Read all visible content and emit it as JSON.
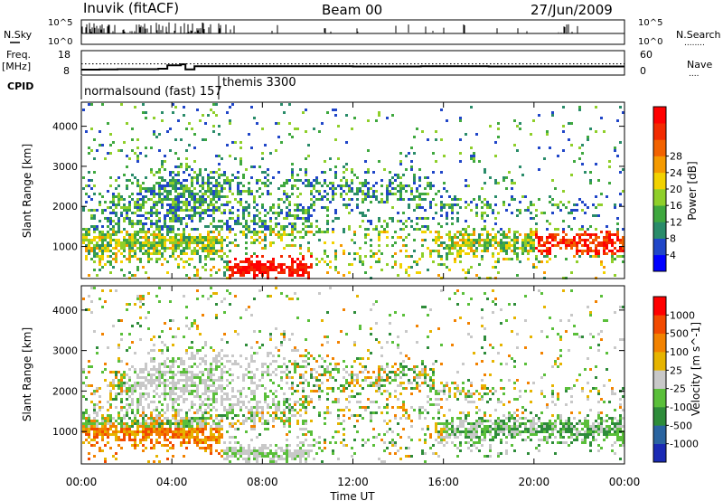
{
  "header": {
    "station": "Inuvik (fitACF)",
    "beam": "Beam 00",
    "date": "27/Jun/2009"
  },
  "noise_panel": {
    "left_label": "N.Sky",
    "left_ticks": [
      "10^5",
      "10^0"
    ],
    "right_ticks": [
      "10^5",
      "10^0"
    ],
    "right_label": "N.Search",
    "right_legend": "........"
  },
  "freq_panel": {
    "left_label_1": "Freq.",
    "left_label_2": "[MHz]",
    "left_ticks": [
      "18",
      "8"
    ],
    "right_ticks": [
      "60",
      "0"
    ],
    "right_label": "Nave",
    "right_legend": "....",
    "freq_values_mhz": [
      10.2,
      10.3,
      10.4,
      10.4,
      10.6,
      12.0,
      12.4,
      10.3,
      11.6,
      11.6,
      11.6,
      11.5,
      11.6,
      11.5,
      11.6
    ],
    "freq_hours": [
      0,
      0.8,
      1.6,
      2.5,
      3.4,
      3.8,
      4.4,
      4.6,
      5.0,
      6.2,
      9,
      12,
      15,
      18,
      24
    ],
    "nave_level": 12.6
  },
  "cpid": {
    "label": "CPID",
    "segments": [
      {
        "name": "normalsound (fast) 157",
        "start_hour": 0,
        "end_hour": 6.1
      },
      {
        "name": "themis 3300",
        "start_hour": 6.1,
        "end_hour": 24
      }
    ]
  },
  "chart_data": [
    {
      "type": "heatmap",
      "name": "Power",
      "xlabel": "",
      "ylabel": "Slant Range [km]",
      "xlim": [
        0,
        24
      ],
      "ylim": [
        200,
        4600
      ],
      "yticks": [
        "1000",
        "2000",
        "3000",
        "4000"
      ],
      "xticks": [
        "00:00",
        "04:00",
        "08:00",
        "12:00",
        "16:00",
        "20:00",
        "00:00"
      ],
      "colorbar": {
        "label": "Power [dB]",
        "ticks": [
          "4",
          "8",
          "12",
          "16",
          "20",
          "24",
          "28"
        ],
        "colors": [
          "#0000ff",
          "#2046c8",
          "#2a8c6a",
          "#3fa83f",
          "#8fcf2a",
          "#f2d200",
          "#f59a00",
          "#f26200",
          "#f22a00",
          "#ff0000"
        ]
      }
    },
    {
      "type": "heatmap",
      "name": "Velocity",
      "xlabel": "Time UT",
      "ylabel": "Slant Range [km]",
      "xlim": [
        0,
        24
      ],
      "ylim": [
        200,
        4600
      ],
      "yticks": [
        "1000",
        "2000",
        "3000",
        "4000"
      ],
      "xticks": [
        "00:00",
        "04:00",
        "08:00",
        "12:00",
        "16:00",
        "20:00",
        "00:00"
      ],
      "colorbar": {
        "label": "Velocity [m s^-1]",
        "ticks": [
          "1000",
          "500",
          "100",
          "25",
          "-25",
          "-100",
          "-500",
          "-1000"
        ],
        "colors": [
          "#1a2ab4",
          "#2a64a0",
          "#2e8c3a",
          "#5abf3a",
          "#c8c8c8",
          "#e6b400",
          "#f28200",
          "#f24a00",
          "#ff0000"
        ]
      }
    }
  ]
}
